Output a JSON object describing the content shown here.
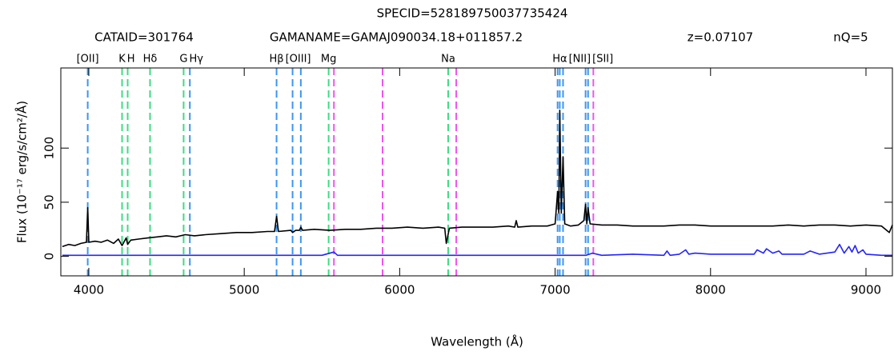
{
  "chart_data": {
    "type": "line",
    "title": "SPECID=528189750037735424",
    "header": [
      "CATAID=301764",
      "GAMANAME=GAMAJ090034.18+011857.2",
      "z=0.07107",
      "nQ=5"
    ],
    "xlabel": "Wavelength (Å)",
    "ylabel": "Flux (10⁻¹⁷ erg/s/cm²/Å)",
    "xlim": [
      3820,
      9170
    ],
    "ylim": [
      -18,
      174
    ],
    "xticks": [
      4000,
      5000,
      6000,
      7000,
      8000,
      9000
    ],
    "yticks": [
      0,
      50,
      100
    ],
    "series": [
      {
        "color": "#000000",
        "x": [
          3830,
          3870,
          3910,
          3950,
          3985,
          3993,
          4000,
          4040,
          4080,
          4120,
          4160,
          4190,
          4214,
          4240,
          4250,
          4270,
          4320,
          4380,
          4440,
          4500,
          4560,
          4620,
          4680,
          4750,
          4850,
          4950,
          5050,
          5150,
          5195,
          5208,
          5220,
          5300,
          5311,
          5330,
          5355,
          5364,
          5375,
          5450,
          5550,
          5650,
          5750,
          5850,
          5950,
          6050,
          6150,
          6250,
          6290,
          6300,
          6320,
          6400,
          6500,
          6600,
          6700,
          6740,
          6750,
          6760,
          6850,
          6950,
          7000,
          7016,
          7024,
          7030,
          7040,
          7051,
          7062,
          7100,
          7150,
          7185,
          7196,
          7204,
          7212,
          7225,
          7300,
          7400,
          7500,
          7600,
          7700,
          7800,
          7900,
          8000,
          8100,
          8200,
          8300,
          8400,
          8500,
          8600,
          8700,
          8800,
          8900,
          9000,
          9100,
          9150,
          9170
        ],
        "values": [
          9,
          11,
          10,
          12,
          13,
          45,
          13,
          14,
          13,
          15,
          12,
          16,
          10,
          17,
          11,
          15,
          16,
          17,
          18,
          19,
          18,
          20,
          19,
          20,
          21,
          22,
          22,
          23,
          23,
          37,
          23,
          24,
          22,
          24,
          24,
          27,
          24,
          25,
          24,
          25,
          25,
          26,
          26,
          27,
          26,
          27,
          26,
          12,
          26,
          27,
          27,
          27,
          28,
          27,
          33,
          27,
          28,
          28,
          30,
          60,
          40,
          135,
          40,
          92,
          30,
          28,
          29,
          33,
          48,
          30,
          45,
          30,
          29,
          29,
          28,
          28,
          28,
          29,
          29,
          28,
          28,
          28,
          28,
          28,
          29,
          28,
          29,
          29,
          28,
          29,
          28,
          22,
          29
        ]
      },
      {
        "color": "#2424ff",
        "x": [
          3830,
          4000,
          4500,
          5000,
          5500,
          5577,
          5600,
          6000,
          6500,
          7000,
          7200,
          7240,
          7300,
          7500,
          7700,
          7720,
          7740,
          7800,
          7840,
          7860,
          7900,
          8000,
          8100,
          8280,
          8300,
          8340,
          8360,
          8400,
          8440,
          8460,
          8500,
          8600,
          8640,
          8700,
          8800,
          8830,
          8860,
          8890,
          8910,
          8930,
          8950,
          8980,
          9000,
          9100,
          9170
        ],
        "values": [
          1,
          1,
          1,
          1,
          1,
          4,
          1,
          1,
          1,
          1,
          1,
          3,
          1,
          2,
          1,
          5,
          1,
          2,
          6,
          2,
          3,
          2,
          2,
          2,
          6,
          3,
          7,
          3,
          5,
          2,
          2,
          2,
          5,
          2,
          4,
          11,
          3,
          9,
          4,
          10,
          3,
          6,
          2,
          1,
          1
        ]
      }
    ],
    "line_markers": [
      {
        "label": "[OII]",
        "color": "#3c96f0",
        "wavelengths": [
          3993
        ]
      },
      {
        "label": "K",
        "color": "#3ddc84",
        "wavelengths": [
          4214
        ]
      },
      {
        "label": "H",
        "color": "#3ddc84",
        "wavelengths": [
          4250
        ]
      },
      {
        "label": "Hδ",
        "color": "#3ddc84",
        "wavelengths": [
          4394
        ]
      },
      {
        "label": "G",
        "color": "#3ddc84",
        "wavelengths": [
          4610
        ]
      },
      {
        "label": "Hγ",
        "color": "#3c96f0",
        "wavelengths": [
          4650
        ]
      },
      {
        "label": "Hβ",
        "color": "#3c96f0",
        "wavelengths": [
          5208
        ]
      },
      {
        "label": "[OIII]",
        "color": "#3c96f0",
        "wavelengths": [
          5311,
          5364
        ]
      },
      {
        "label": "Mg",
        "color": "#3ddc84",
        "wavelengths": [
          5543
        ]
      },
      {
        "label": "Na",
        "color": "#3ddc84",
        "wavelengths": [
          6312
        ]
      },
      {
        "label": "Hα",
        "color": "#3c96f0",
        "wavelengths": [
          7030
        ]
      },
      {
        "label": "[NII]",
        "color": "#3c96f0",
        "wavelengths": [
          7016,
          7051
        ]
      },
      {
        "label": "[SII]",
        "color": "#3c96f0",
        "wavelengths": [
          7196,
          7212
        ]
      },
      {
        "color": "#ee55ee",
        "wavelengths": [
          5577,
          5890,
          6364,
          7246
        ]
      }
    ]
  }
}
